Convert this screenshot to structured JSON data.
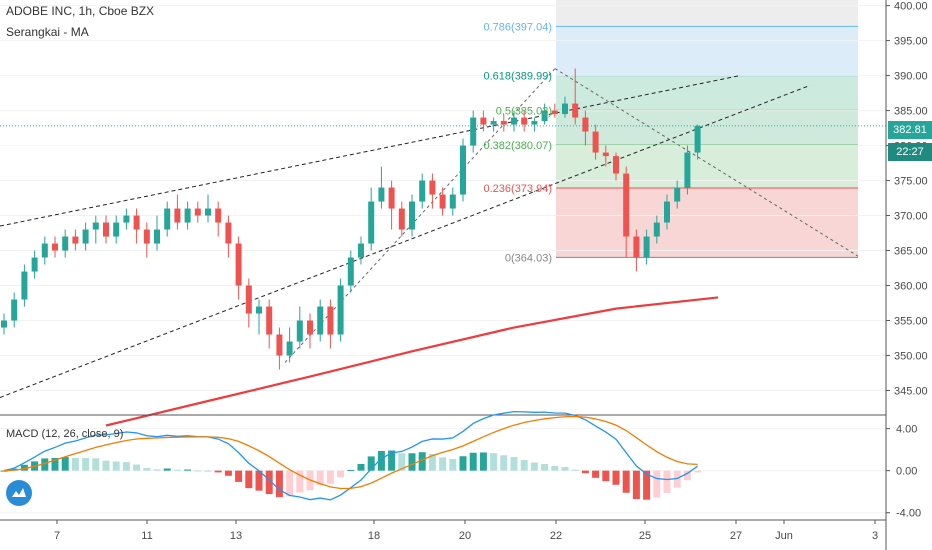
{
  "header": {
    "title": "ADOBE INC, 1h, Cboe BZX",
    "indicator": "Serangkai - MA"
  },
  "macd_label": "MACD (12, 26, close, 9)",
  "price_badges": {
    "last": "382.81",
    "timer": "22:27"
  },
  "colors": {
    "up": "#26a69a",
    "down": "#ef5350",
    "ma": "#ef3b3b",
    "macd_line": "#2196f3",
    "signal_line": "#f57c00",
    "badge_last": "#26a69a",
    "badge_timer": "#1f8a7f"
  },
  "chart_data": [
    {
      "type": "candlestick",
      "ylim": [
        341.5,
        400.8
      ],
      "y_ticks": [
        "345.00",
        "350.00",
        "355.00",
        "360.00",
        "365.00",
        "370.00",
        "375.00",
        "380.00",
        "385.00",
        "390.00",
        "395.00",
        "400.00"
      ],
      "x_ticks": [
        "7",
        "11",
        "13",
        "18",
        "20",
        "22",
        "25",
        "27",
        "Jun",
        "3"
      ],
      "fib_levels": [
        {
          "ratio": "0",
          "price": 364.03,
          "label": "0(364.03)",
          "color": "#888888"
        },
        {
          "ratio": "0.236",
          "price": 373.94,
          "label": "0.236(373.94)",
          "color": "#ef5350"
        },
        {
          "ratio": "0.382",
          "price": 380.07,
          "label": "0.382(380.07)",
          "color": "#4caf50"
        },
        {
          "ratio": "0.5",
          "price": 385.03,
          "label": "0.5(385.03)",
          "color": "#4caf50"
        },
        {
          "ratio": "0.618",
          "price": 389.99,
          "label": "0.618(389.99)",
          "color": "#089981"
        },
        {
          "ratio": "0.786",
          "price": 397.04,
          "label": "0.786(397.04)",
          "color": "#64b5f6"
        }
      ],
      "ma_series": [
        {
          "x": 10,
          "y": 340.0
        },
        {
          "x": 20,
          "y": 343.5
        },
        {
          "x": 30,
          "y": 347.0
        },
        {
          "x": 40,
          "y": 350.6
        },
        {
          "x": 50,
          "y": 354.0
        },
        {
          "x": 60,
          "y": 356.7
        },
        {
          "x": 70,
          "y": 358.3
        }
      ],
      "candles": [
        [
          0,
          354,
          355,
          353,
          356
        ],
        [
          1,
          355,
          358,
          354,
          359
        ],
        [
          2,
          358,
          362,
          357,
          363
        ],
        [
          3,
          362,
          364,
          361,
          365
        ],
        [
          4,
          364,
          366,
          363,
          367
        ],
        [
          5,
          366,
          365,
          364,
          367
        ],
        [
          6,
          365,
          367,
          364,
          368
        ],
        [
          7,
          367,
          366,
          365,
          368
        ],
        [
          8,
          366,
          368,
          365,
          369
        ],
        [
          9,
          368,
          369,
          366,
          370
        ],
        [
          10,
          369,
          367,
          366,
          370
        ],
        [
          11,
          367,
          369,
          366,
          370
        ],
        [
          12,
          369,
          370,
          368,
          371
        ],
        [
          13,
          370,
          368,
          366,
          371
        ],
        [
          14,
          368,
          366,
          364,
          369
        ],
        [
          15,
          366,
          368,
          365,
          370
        ],
        [
          16,
          368,
          371,
          367,
          372
        ],
        [
          17,
          371,
          369,
          368,
          373
        ],
        [
          18,
          369,
          371,
          368,
          372
        ],
        [
          19,
          371,
          370,
          369,
          372
        ],
        [
          20,
          370,
          371,
          369,
          373
        ],
        [
          21,
          371,
          369,
          367,
          372
        ],
        [
          22,
          369,
          366,
          364,
          370
        ],
        [
          23,
          366,
          360,
          358,
          367
        ],
        [
          24,
          360,
          356,
          354,
          361
        ],
        [
          25,
          356,
          357,
          353,
          358
        ],
        [
          26,
          357,
          353,
          351,
          358
        ],
        [
          27,
          353,
          350,
          348,
          354
        ],
        [
          28,
          350,
          352,
          349,
          354
        ],
        [
          29,
          352,
          355,
          351,
          357
        ],
        [
          30,
          355,
          353,
          351,
          356
        ],
        [
          31,
          353,
          357,
          352,
          358
        ],
        [
          32,
          357,
          353,
          351,
          358
        ],
        [
          33,
          353,
          360,
          352,
          361
        ],
        [
          34,
          360,
          364,
          359,
          365
        ],
        [
          35,
          364,
          366,
          363,
          367
        ],
        [
          36,
          366,
          372,
          365,
          374
        ],
        [
          37,
          372,
          374,
          371,
          377
        ],
        [
          38,
          374,
          371,
          368,
          375
        ],
        [
          39,
          371,
          368,
          367,
          372
        ],
        [
          40,
          368,
          372,
          367,
          373
        ],
        [
          41,
          372,
          375,
          371,
          376
        ],
        [
          42,
          375,
          373,
          371,
          376
        ],
        [
          43,
          373,
          371,
          370,
          374
        ],
        [
          44,
          371,
          373,
          370,
          374
        ],
        [
          45,
          373,
          380,
          372,
          381
        ],
        [
          46,
          380,
          384,
          379,
          385
        ],
        [
          47,
          384,
          383,
          382,
          385
        ],
        [
          48,
          383,
          383.5,
          382,
          384
        ],
        [
          49,
          383.5,
          383,
          382,
          384.5
        ],
        [
          50,
          383,
          384,
          382,
          385
        ],
        [
          51,
          384,
          383,
          382,
          385
        ],
        [
          52,
          383,
          383.5,
          382,
          384
        ],
        [
          53,
          383.5,
          385,
          383,
          386
        ],
        [
          54,
          385,
          384.5,
          384,
          386
        ],
        [
          55,
          384.5,
          386,
          384,
          387
        ],
        [
          56,
          386,
          384,
          383,
          391
        ],
        [
          57,
          384,
          382,
          380,
          385
        ],
        [
          58,
          382,
          379,
          378,
          383
        ],
        [
          59,
          379,
          378.5,
          377,
          380
        ],
        [
          60,
          378.5,
          376,
          375,
          379
        ],
        [
          61,
          376,
          367,
          364,
          377
        ],
        [
          62,
          367,
          364,
          362,
          368
        ],
        [
          63,
          364,
          367,
          363,
          368
        ],
        [
          64,
          367,
          369,
          366,
          370
        ],
        [
          65,
          369,
          372,
          368,
          373
        ],
        [
          66,
          372,
          374,
          371,
          375
        ],
        [
          67,
          374,
          379,
          373,
          380
        ],
        [
          68,
          379,
          382.81,
          378,
          383
        ]
      ]
    },
    {
      "type": "macd",
      "params": "12, 26, close, 9",
      "ylim": [
        -4.6,
        5.2
      ],
      "y_ticks": [
        "4.00",
        "0.00",
        "-4.00"
      ]
    }
  ]
}
